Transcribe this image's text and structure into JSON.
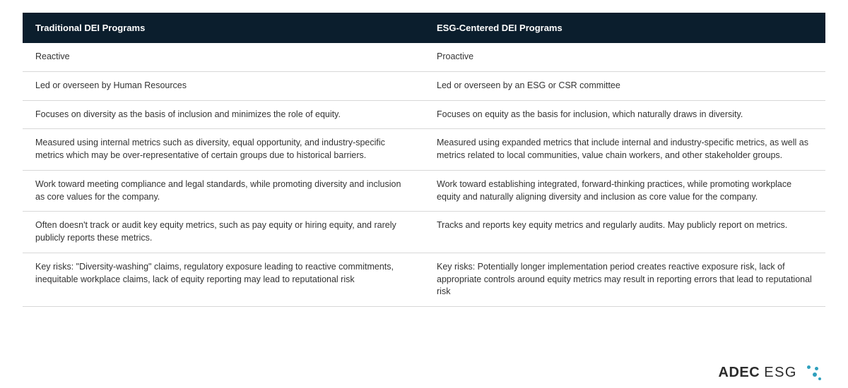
{
  "table": {
    "header_bg": "#0b1e2d",
    "header_fg": "#ffffff",
    "row_border": "#d8d8d8",
    "cell_fg": "#333333",
    "header_fontsize": 13,
    "cell_fontsize": 12.5,
    "columns": [
      "Traditional DEI Programs",
      "ESG-Centered DEI Programs"
    ],
    "rows": [
      [
        "Reactive",
        "Proactive"
      ],
      [
        "Led or overseen by Human Resources",
        "Led or overseen by an ESG or CSR committee"
      ],
      [
        "Focuses on diversity as the basis of inclusion and minimizes the role of equity.",
        "Focuses on equity as the basis for inclusion, which naturally draws in diversity."
      ],
      [
        "Measured using internal metrics such as diversity, equal opportunity, and industry-specific metrics which may be over-representative of certain groups due to historical barriers.",
        "Measured using expanded metrics that include internal and industry-specific metrics, as well as metrics related to local communities, value chain workers, and other stakeholder groups."
      ],
      [
        "Work toward meeting compliance and legal standards, while promoting diversity and inclusion as core values for the company.",
        "Work toward establishing integrated, forward-thinking practices, while promoting workplace equity and naturally aligning diversity and inclusion as core value for the company."
      ],
      [
        "Often doesn't track or audit key equity metrics, such as pay equity or hiring equity, and rarely publicly reports these metrics.",
        "Tracks and reports key equity metrics and regularly audits. May publicly report on metrics."
      ],
      [
        "Key risks: \"Diversity-washing\" claims, regulatory exposure leading to reactive commitments, inequitable workplace claims, lack of equity reporting may lead to reputational risk",
        "Key risks: Potentially longer implementation period creates reactive exposure risk, lack of appropriate controls around equity metrics may result in reporting errors that lead to reputational risk"
      ]
    ]
  },
  "logo": {
    "brand_bold": "ADEC",
    "brand_light": "ESG",
    "dot_color": "#2fa0bd",
    "text_color": "#2b2b2b"
  }
}
